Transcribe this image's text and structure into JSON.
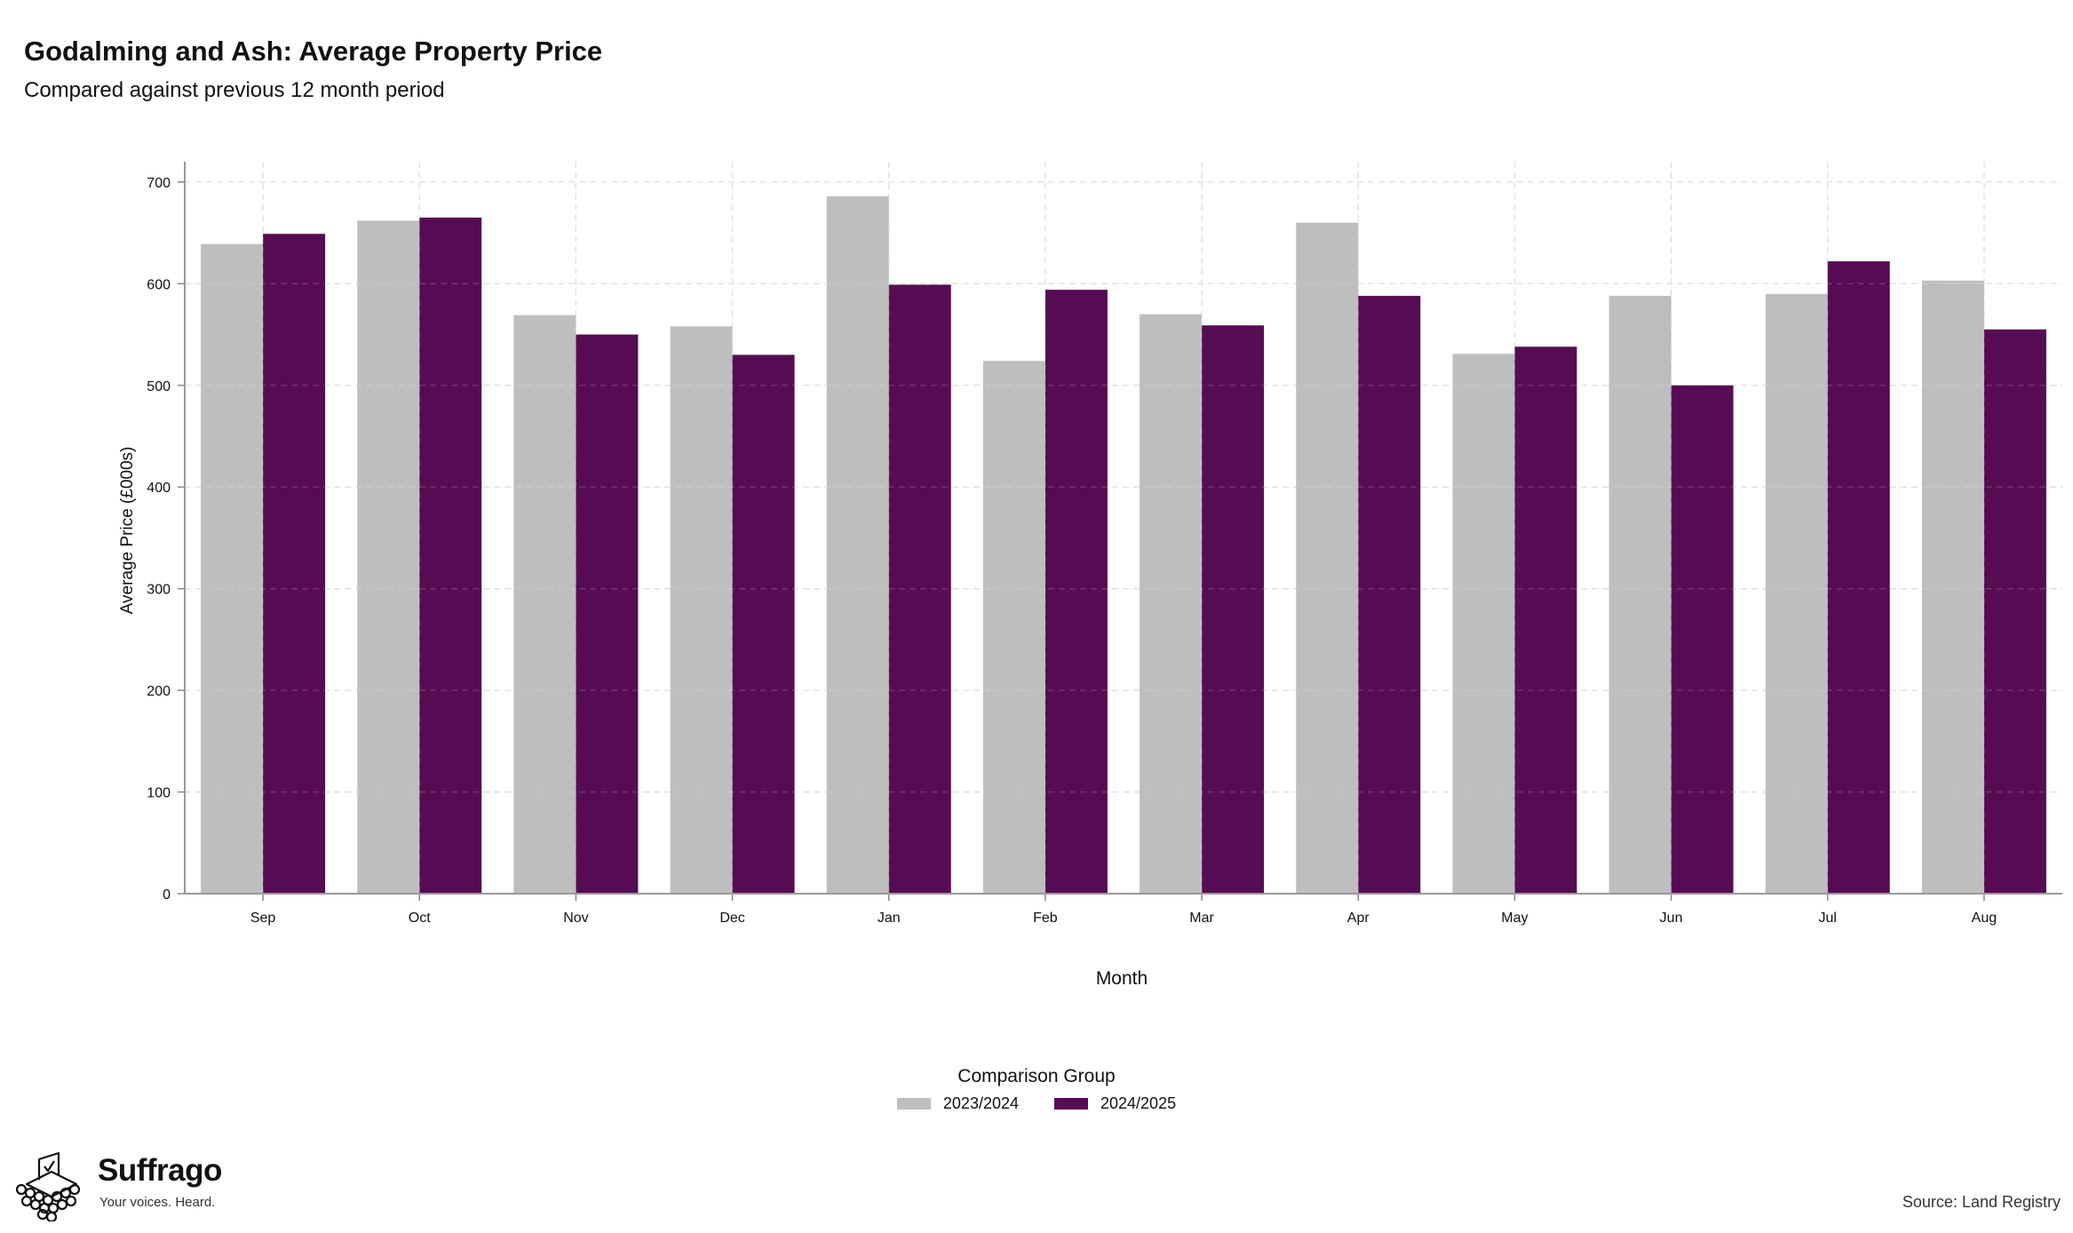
{
  "title": "Godalming and Ash: Average Property Price",
  "subtitle": "Compared against previous 12 month period",
  "legend": {
    "title": "Comparison Group",
    "items": [
      {
        "label": "2023/2024",
        "color": "#bebebe"
      },
      {
        "label": "2024/2025",
        "color": "#560c53"
      }
    ]
  },
  "source": "Source: Land Registry",
  "logo": {
    "name": "Suffrago",
    "tagline": "Your voices. Heard.",
    "icon": "ballot-box-icon"
  },
  "chart_data": {
    "type": "bar",
    "xlabel": "Month",
    "ylabel": "Average Price (£000s)",
    "ylim": [
      0,
      720
    ],
    "yticks": [
      0,
      100,
      200,
      300,
      400,
      500,
      600,
      700
    ],
    "grid": true,
    "legend_position": "bottom",
    "categories": [
      "Sep",
      "Oct",
      "Nov",
      "Dec",
      "Jan",
      "Feb",
      "Mar",
      "Apr",
      "May",
      "Jun",
      "Jul",
      "Aug"
    ],
    "series": [
      {
        "name": "2023/2024",
        "color": "#bebebe",
        "values": [
          639,
          662,
          569,
          558,
          686,
          524,
          570,
          660,
          531,
          588,
          590,
          603
        ]
      },
      {
        "name": "2024/2025",
        "color": "#560c53",
        "values": [
          649,
          665,
          550,
          530,
          599,
          594,
          559,
          588,
          538,
          500,
          622,
          555
        ]
      }
    ]
  }
}
